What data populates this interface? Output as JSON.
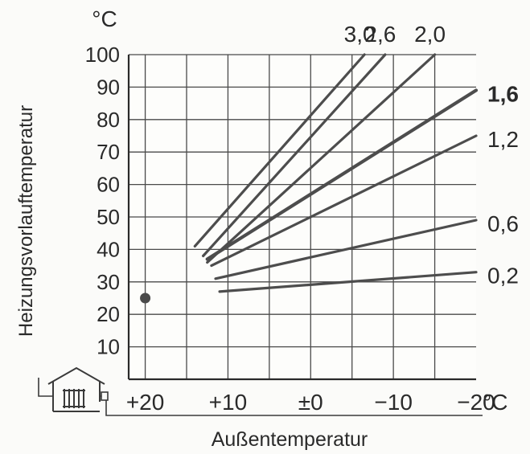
{
  "chart_data": {
    "type": "line",
    "title": "",
    "ylabel": "Heizungsvorlauftemperatur",
    "yunit": "°C",
    "xlabel": "Außentemperatur",
    "xunit": "°C",
    "xlim": [
      22,
      -20
    ],
    "ylim": [
      0,
      100
    ],
    "grid": true,
    "x_ticks": [
      {
        "value": 20,
        "label": "+20"
      },
      {
        "value": 10,
        "label": "+10"
      },
      {
        "value": 0,
        "label": "±0"
      },
      {
        "value": -10,
        "label": "−10"
      },
      {
        "value": -20,
        "label": "−20"
      }
    ],
    "y_ticks": [
      {
        "value": 10,
        "label": "10"
      },
      {
        "value": 20,
        "label": "20"
      },
      {
        "value": 30,
        "label": "30"
      },
      {
        "value": 40,
        "label": "40"
      },
      {
        "value": 50,
        "label": "50"
      },
      {
        "value": 60,
        "label": "60"
      },
      {
        "value": 70,
        "label": "70"
      },
      {
        "value": 80,
        "label": "80"
      },
      {
        "value": 90,
        "label": "90"
      },
      {
        "value": 100,
        "label": "100"
      }
    ],
    "series": [
      {
        "name": "3,0",
        "x": [
          14,
          -6.5
        ],
        "y": [
          41,
          100
        ],
        "label_pos": "top",
        "bold": false
      },
      {
        "name": "2,6",
        "x": [
          13,
          -9
        ],
        "y": [
          38,
          100
        ],
        "label_pos": "top",
        "bold": false
      },
      {
        "name": "2,0",
        "x": [
          12.5,
          -15
        ],
        "y": [
          36,
          100
        ],
        "label_pos": "top",
        "bold": false
      },
      {
        "name": "1,6",
        "x": [
          12.5,
          -20
        ],
        "y": [
          37,
          89
        ],
        "label_pos": "right",
        "bold": true
      },
      {
        "name": "1,2",
        "x": [
          12,
          -20
        ],
        "y": [
          35,
          75
        ],
        "label_pos": "right",
        "bold": false
      },
      {
        "name": "0,6",
        "x": [
          11.5,
          -20
        ],
        "y": [
          31,
          49
        ],
        "label_pos": "right",
        "bold": false
      },
      {
        "name": "0,2",
        "x": [
          11,
          -20
        ],
        "y": [
          27,
          33
        ],
        "label_pos": "right",
        "bold": false
      }
    ],
    "marker_point": {
      "x": 20,
      "y": 25
    }
  }
}
